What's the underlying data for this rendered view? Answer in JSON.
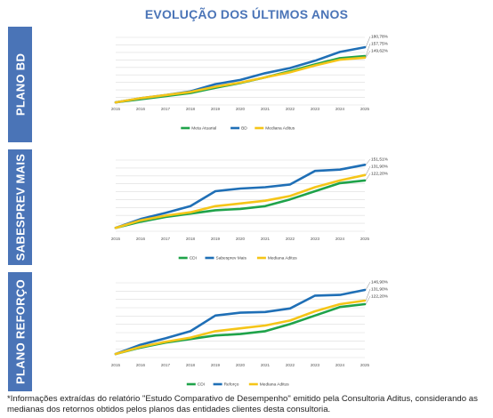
{
  "title": "EVOLUÇÃO DOS ÚLTIMOS ANOS",
  "footnote": "*Informações extraídas do relatório \"Estudo Comparativo de Desempenho\" emitido pela Consultoria Aditus, considerando as medianas dos retornos obtidos pelos planos das entidades clientes desta consultoria.",
  "colors": {
    "band": "#4a74b7",
    "green": "#1fa34a",
    "blue": "#1f6fb6",
    "yellow": "#f5c518"
  },
  "chart_data": [
    {
      "type": "line",
      "panel_label": "PLANO BD",
      "x": [
        "2015",
        "2016",
        "2017",
        "2018",
        "2019",
        "2020",
        "2021",
        "2022",
        "2023",
        "2024",
        "2025"
      ],
      "series": [
        {
          "name": "Meta Atuarial",
          "color": "#1fa34a",
          "values": [
            100,
            106,
            112,
            118,
            128,
            137,
            148,
            160,
            173,
            185,
            189
          ]
        },
        {
          "name": "BD",
          "color": "#1f6fb6",
          "values": [
            100,
            108,
            114,
            121,
            135,
            143,
            156,
            166,
            180,
            197,
            206
          ]
        },
        {
          "name": "Mediana Aditus",
          "color": "#f5c518",
          "values": [
            100,
            108,
            114,
            120,
            130,
            138,
            148,
            158,
            171,
            182,
            186
          ]
        }
      ],
      "end_labels": [
        "180,78%",
        "157,75%",
        "149,62%"
      ],
      "ylim": [
        95,
        225
      ]
    },
    {
      "type": "line",
      "panel_label": "SABESPREV MAIS",
      "x": [
        "2015",
        "2016",
        "2017",
        "2018",
        "2019",
        "2020",
        "2021",
        "2022",
        "2023",
        "2024",
        "2025"
      ],
      "series": [
        {
          "name": "CDI",
          "color": "#1fa34a",
          "values": [
            100,
            109,
            116,
            121,
            126,
            128,
            132,
            142,
            154,
            166,
            170
          ]
        },
        {
          "name": "Sabesprev Mais",
          "color": "#1f6fb6",
          "values": [
            100,
            113,
            122,
            132,
            154,
            158,
            160,
            164,
            184,
            186,
            193
          ]
        },
        {
          "name": "Mediana Aditus",
          "color": "#f5c518",
          "values": [
            100,
            111,
            118,
            123,
            132,
            136,
            140,
            147,
            160,
            170,
            178
          ]
        }
      ],
      "end_labels": [
        "151,51%",
        "131,90%",
        "122,20%"
      ],
      "ylim": [
        95,
        200
      ]
    },
    {
      "type": "line",
      "panel_label": "PLANO REFORÇO",
      "x": [
        "2015",
        "2016",
        "2017",
        "2018",
        "2019",
        "2020",
        "2021",
        "2022",
        "2023",
        "2024",
        "2025"
      ],
      "series": [
        {
          "name": "CDI",
          "color": "#1fa34a",
          "values": [
            100,
            109,
            116,
            121,
            126,
            128,
            132,
            142,
            154,
            166,
            170
          ]
        },
        {
          "name": "Reforço",
          "color": "#1f6fb6",
          "values": [
            100,
            113,
            122,
            132,
            154,
            158,
            159,
            164,
            182,
            183,
            190
          ]
        },
        {
          "name": "Mediana Aditus",
          "color": "#f5c518",
          "values": [
            100,
            110,
            117,
            123,
            132,
            136,
            140,
            147,
            160,
            170,
            175
          ]
        }
      ],
      "end_labels": [
        "146,90%",
        "131,90%",
        "122,20%"
      ],
      "ylim": [
        95,
        200
      ]
    }
  ]
}
